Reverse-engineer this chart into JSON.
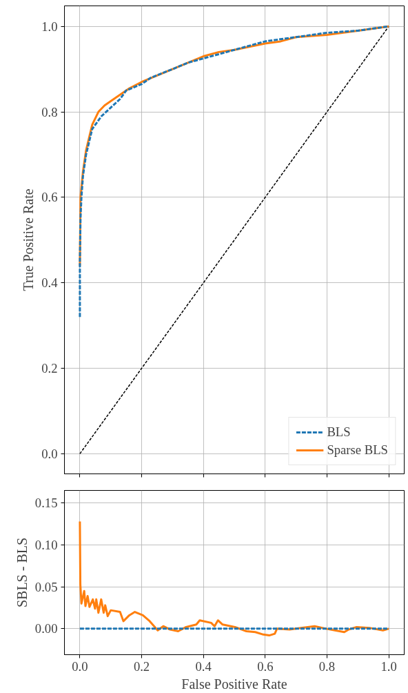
{
  "chart_data": [
    {
      "type": "line",
      "ylabel": "True Positive Rate",
      "xlim": [
        -0.05,
        1.05
      ],
      "ylim": [
        -0.047,
        1.048
      ],
      "xticks": [
        {
          "value": 0,
          "label": null
        },
        {
          "value": 0.2,
          "label": null
        },
        {
          "value": 0.4,
          "label": null
        },
        {
          "value": 0.6,
          "label": null
        },
        {
          "value": 0.8,
          "label": null
        },
        {
          "value": 1,
          "label": null
        }
      ],
      "yticks": [
        {
          "value": 0,
          "label": "0.0"
        },
        {
          "value": 0.2,
          "label": "0.2"
        },
        {
          "value": 0.4,
          "label": "0.4"
        },
        {
          "value": 0.6,
          "label": "0.6"
        },
        {
          "value": 0.8,
          "label": "0.8"
        },
        {
          "value": 1,
          "label": "1.0"
        }
      ],
      "tick_labels": "y",
      "grid": true,
      "legend": "bottom right",
      "series": [
        {
          "name": "BLS",
          "color": "#1f77b4",
          "line_style": "dashed",
          "x": [
            0,
            0,
            0.002,
            0.005,
            0.01,
            0.02,
            0.03,
            0.04,
            0.05,
            0.07,
            0.1,
            0.13,
            0.15,
            0.2,
            0.23,
            0.3,
            0.35,
            0.4,
            0.45,
            0.5,
            0.55,
            0.6,
            0.7,
            0.8,
            0.9,
            1
          ],
          "values": [
            0.32,
            0.45,
            0.55,
            0.6,
            0.65,
            0.7,
            0.73,
            0.76,
            0.77,
            0.79,
            0.81,
            0.83,
            0.85,
            0.865,
            0.88,
            0.9,
            0.915,
            0.925,
            0.935,
            0.945,
            0.955,
            0.965,
            0.975,
            0.985,
            0.99,
            1
          ]
        },
        {
          "name": "Sparse BLS",
          "color": "#ff7f0e",
          "line_style": "solid",
          "x": [
            0,
            0.002,
            0.01,
            0.02,
            0.03,
            0.04,
            0.06,
            0.08,
            0.1,
            0.13,
            0.16,
            0.2,
            0.25,
            0.3,
            0.35,
            0.4,
            0.45,
            0.5,
            0.6,
            0.65,
            0.7,
            0.8,
            0.85,
            0.9,
            1
          ],
          "values": [
            0.44,
            0.6,
            0.66,
            0.71,
            0.74,
            0.77,
            0.8,
            0.815,
            0.825,
            0.84,
            0.855,
            0.87,
            0.885,
            0.9,
            0.915,
            0.93,
            0.94,
            0.945,
            0.96,
            0.965,
            0.975,
            0.98,
            0.985,
            0.99,
            1
          ]
        },
        {
          "color": "#000000",
          "line_style": "dashed",
          "x": [
            0,
            1
          ],
          "values": [
            0,
            1
          ]
        }
      ]
    },
    {
      "type": "line",
      "xlabel": "False Positive Rate",
      "ylabel": "SBLS - BLS",
      "xlim": [
        -0.05,
        1.05
      ],
      "ylim": [
        -0.031,
        0.165
      ],
      "xticks": [
        {
          "value": 0,
          "label": "0.0"
        },
        {
          "value": 0.2,
          "label": "0.2"
        },
        {
          "value": 0.4,
          "label": "0.4"
        },
        {
          "value": 0.6,
          "label": "0.6"
        },
        {
          "value": 0.8,
          "label": "0.8"
        },
        {
          "value": 1,
          "label": "1.0"
        }
      ],
      "yticks": [
        {
          "value": 0,
          "label": "0.00"
        },
        {
          "value": 0.05,
          "label": "0.05"
        },
        {
          "value": 0.1,
          "label": "0.10"
        },
        {
          "value": 0.15,
          "label": "0.15"
        }
      ],
      "grid": true,
      "series": [
        {
          "color": "#1f77b4",
          "line_style": "dashed",
          "x": [
            0,
            1
          ],
          "values": [
            0,
            0
          ]
        },
        {
          "color": "#ff7f0e",
          "line_style": "solid",
          "x": [
            0,
            0.0015,
            0.005,
            0.014,
            0.018,
            0.025,
            0.031,
            0.042,
            0.049,
            0.053,
            0.06,
            0.069,
            0.077,
            0.082,
            0.09,
            0.1,
            0.13,
            0.141,
            0.16,
            0.178,
            0.204,
            0.226,
            0.252,
            0.27,
            0.292,
            0.318,
            0.344,
            0.377,
            0.388,
            0.425,
            0.436,
            0.447,
            0.462,
            0.502,
            0.539,
            0.568,
            0.594,
            0.613,
            0.631,
            0.638,
            0.679,
            0.716,
            0.76,
            0.797,
            0.826,
            0.856,
            0.87,
            0.896,
            0.937,
            0.981,
            1
          ],
          "values": [
            0.128,
            0.053,
            0.03,
            0.045,
            0.027,
            0.039,
            0.026,
            0.035,
            0.024,
            0.035,
            0.019,
            0.035,
            0.019,
            0.028,
            0.015,
            0.022,
            0.02,
            0.009,
            0.016,
            0.02,
            0.016,
            0.009,
            -0.002,
            0.003,
            -0.001,
            -0.003,
            0.002,
            0.005,
            0.01,
            0.007,
            0.003,
            0.01,
            0.005,
            0.002,
            -0.003,
            -0.004,
            -0.007,
            -0.008,
            -0.006,
            0,
            -0.001,
            0.001,
            0.003,
            0,
            -0.002,
            -0.004,
            -0.001,
            0.002,
            0.001,
            -0.002,
            0
          ]
        }
      ]
    }
  ]
}
